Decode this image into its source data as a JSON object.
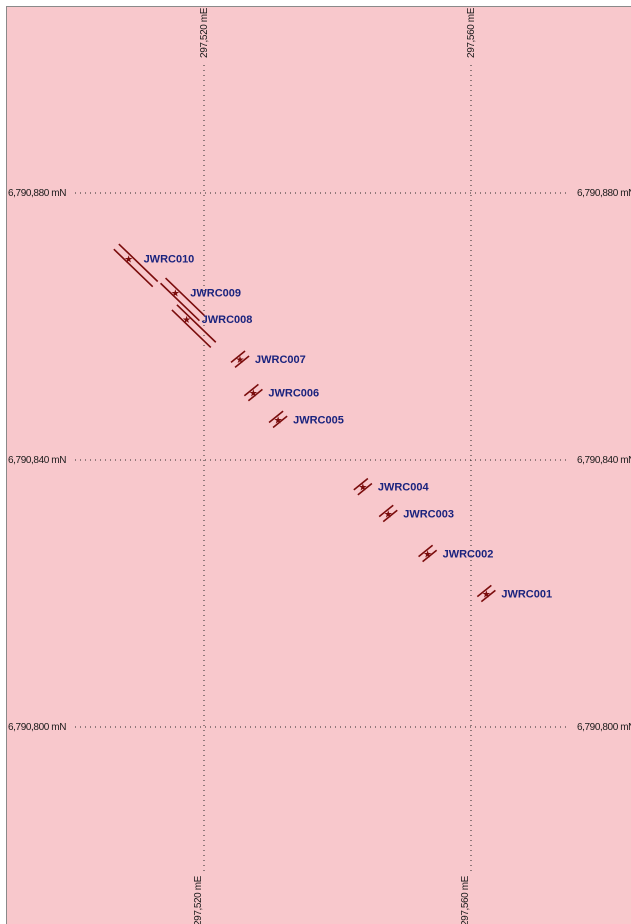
{
  "grid": {
    "eastings": [
      {
        "value": 297520,
        "label_top": "297,520 mE",
        "label_bottom": "297,520 mE"
      },
      {
        "value": 297560,
        "label_top": "297,560 mE",
        "label_bottom": "297,560 mE"
      }
    ],
    "northings": [
      {
        "value": 6790880,
        "label_left": "6,790,880 mN",
        "label_right": "6,790,880 mN"
      },
      {
        "value": 6790840,
        "label_left": "6,790,840 mN",
        "label_right": "6,790,840 mN"
      },
      {
        "value": 6790800,
        "label_left": "6,790,800 mN",
        "label_right": "6,790,800 mN"
      }
    ]
  },
  "drillholes": [
    {
      "id": "JWRC010",
      "easting": 297508.7,
      "northing": 6790870.2,
      "trace": "long"
    },
    {
      "id": "JWRC009",
      "easting": 297515.7,
      "northing": 6790865.1,
      "trace": "long"
    },
    {
      "id": "JWRC008",
      "easting": 297517.4,
      "northing": 6790861.1,
      "trace": "long"
    },
    {
      "id": "JWRC007",
      "easting": 297525.4,
      "northing": 6790855.1,
      "trace": "short"
    },
    {
      "id": "JWRC006",
      "easting": 297527.4,
      "northing": 6790850.1,
      "trace": "short"
    },
    {
      "id": "JWRC005",
      "easting": 297531.1,
      "northing": 6790846.1,
      "trace": "short"
    },
    {
      "id": "JWRC004",
      "easting": 297543.8,
      "northing": 6790836.0,
      "trace": "short"
    },
    {
      "id": "JWRC003",
      "easting": 297547.6,
      "northing": 6790832.0,
      "trace": "short"
    },
    {
      "id": "JWRC002",
      "easting": 297553.5,
      "northing": 6790826.0,
      "trace": "short"
    },
    {
      "id": "JWRC001",
      "easting": 297562.3,
      "northing": 6790820.0,
      "trace": "short"
    }
  ],
  "style": {
    "background": "#f8c8cc",
    "trace_color": "#7a0c0c",
    "label_color": "#1a237e",
    "collar_symbol": "star"
  }
}
